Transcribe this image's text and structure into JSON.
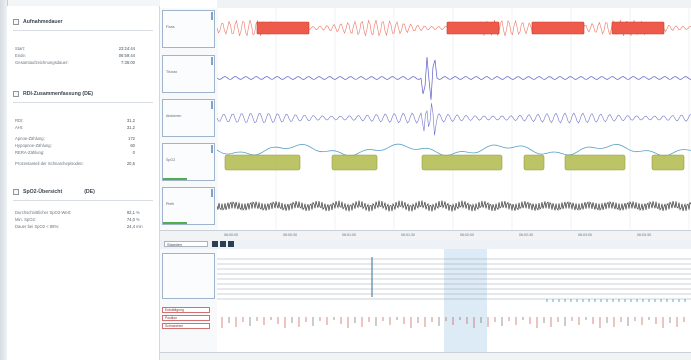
{
  "summary": {
    "sections": [
      {
        "title": "Aufnahmedauer",
        "rows": [
          {
            "label": "Start:",
            "value": "23:24:44",
            "unit": ""
          },
          {
            "label": "Ende:",
            "value": "06:59:44",
            "unit": ""
          },
          {
            "label": "Gesamtaufzeichnungsdauer:",
            "value": "7:35:00",
            "unit": ""
          }
        ]
      },
      {
        "title": "RDI-Zusammenfassung (DE)",
        "rows": [
          {
            "label": "RDI:",
            "value": "31,2",
            "unit": ""
          },
          {
            "label": "AHI:",
            "value": "31,2",
            "unit": ""
          },
          {
            "label": "Apnoe-Zählung:",
            "value": "172",
            "unit": ""
          },
          {
            "label": "Hypopnoe-Zählung:",
            "value": "60",
            "unit": ""
          },
          {
            "label": "RERA-Zählung:",
            "value": "0",
            "unit": ""
          },
          {
            "label": "Prozentanteil der Schnarchepisoden:",
            "value": "20,5",
            "unit": ""
          }
        ]
      },
      {
        "title": "SpO2-Übersicht",
        "title_tag": "(DE)",
        "rows": [
          {
            "label": "Durchschnittlicher SpO2-Wert:",
            "value": "92,1",
            "unit": "%"
          },
          {
            "label": "Min. SpO2:",
            "value": "74,0",
            "unit": "%"
          },
          {
            "label": "Dauer bei SpO2 < 88%:",
            "value": "24,4",
            "unit": "min"
          }
        ]
      }
    ]
  },
  "lanes": {
    "labels": [
      "Fluss",
      "Thorax",
      "Abdomen",
      "SpO2",
      "Pleth"
    ]
  },
  "ruler": {
    "ticks": [
      "06:00:00",
      "06:00:30",
      "06:01:00",
      "06:01:30",
      "06:02:00",
      "06:02:30",
      "06:03:00",
      "06:03:30"
    ]
  },
  "toolbar": {
    "selector": "Stunden"
  },
  "lower": {
    "tags": [
      "Entsättigung",
      "Position",
      "Schnarchen"
    ]
  },
  "colors": {
    "flow": "#e8543f",
    "event_box": "#ef5b4b",
    "thorax": "#5b5fc7",
    "abdomen": "#5b5fc7",
    "spo2": "#5aa0c8",
    "spo2_event": "#b5be55",
    "pleth": "#3a3a3a",
    "accent": "#4a90d9"
  }
}
